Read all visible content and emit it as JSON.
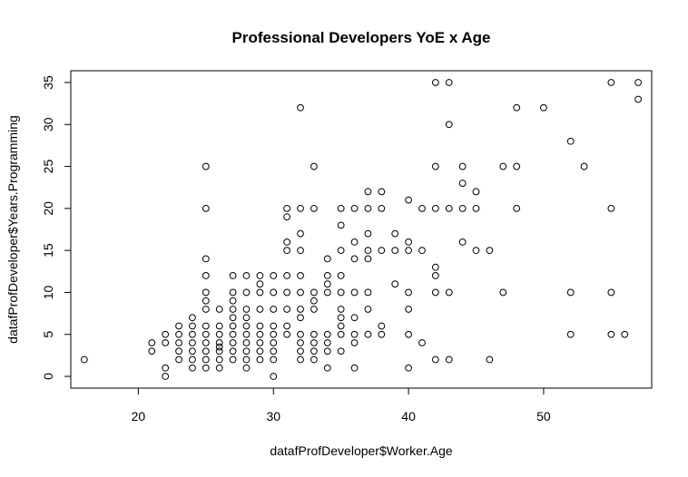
{
  "chart_data": {
    "type": "scatter",
    "title": "Professional Developers YoE x Age",
    "xlabel": "datafProfDeveloper$Worker.Age",
    "ylabel": "datafProfDeveloper$Years.Programming",
    "xlim": [
      15,
      58
    ],
    "ylim": [
      -1.4,
      36.4
    ],
    "xticks": [
      20,
      30,
      40,
      50
    ],
    "yticks": [
      0,
      5,
      10,
      15,
      20,
      25,
      30,
      35
    ],
    "grid": false,
    "legend": "none",
    "points": [
      {
        "x": 16,
        "y": 2
      },
      {
        "x": 21,
        "y": 3
      },
      {
        "x": 21,
        "y": 4
      },
      {
        "x": 22,
        "y": 0
      },
      {
        "x": 22,
        "y": 1
      },
      {
        "x": 22,
        "y": 4
      },
      {
        "x": 22,
        "y": 5
      },
      {
        "x": 23,
        "y": 2
      },
      {
        "x": 23,
        "y": 3
      },
      {
        "x": 23,
        "y": 4
      },
      {
        "x": 23,
        "y": 5
      },
      {
        "x": 23,
        "y": 6
      },
      {
        "x": 24,
        "y": 1
      },
      {
        "x": 24,
        "y": 2
      },
      {
        "x": 24,
        "y": 3
      },
      {
        "x": 24,
        "y": 4
      },
      {
        "x": 24,
        "y": 5
      },
      {
        "x": 24,
        "y": 6
      },
      {
        "x": 24,
        "y": 7
      },
      {
        "x": 25,
        "y": 1
      },
      {
        "x": 25,
        "y": 2
      },
      {
        "x": 25,
        "y": 3
      },
      {
        "x": 25,
        "y": 4
      },
      {
        "x": 25,
        "y": 5
      },
      {
        "x": 25,
        "y": 6
      },
      {
        "x": 25,
        "y": 8
      },
      {
        "x": 25,
        "y": 9
      },
      {
        "x": 25,
        "y": 10
      },
      {
        "x": 25,
        "y": 12
      },
      {
        "x": 25,
        "y": 14
      },
      {
        "x": 25,
        "y": 20
      },
      {
        "x": 25,
        "y": 25
      },
      {
        "x": 26,
        "y": 1
      },
      {
        "x": 26,
        "y": 2
      },
      {
        "x": 26,
        "y": 3
      },
      {
        "x": 26,
        "y": 3.5
      },
      {
        "x": 26,
        "y": 4
      },
      {
        "x": 26,
        "y": 5
      },
      {
        "x": 26,
        "y": 6
      },
      {
        "x": 26,
        "y": 8
      },
      {
        "x": 27,
        "y": 2
      },
      {
        "x": 27,
        "y": 3
      },
      {
        "x": 27,
        "y": 4
      },
      {
        "x": 27,
        "y": 5
      },
      {
        "x": 27,
        "y": 6
      },
      {
        "x": 27,
        "y": 7
      },
      {
        "x": 27,
        "y": 8
      },
      {
        "x": 27,
        "y": 9
      },
      {
        "x": 27,
        "y": 10
      },
      {
        "x": 27,
        "y": 12
      },
      {
        "x": 28,
        "y": 1
      },
      {
        "x": 28,
        "y": 2
      },
      {
        "x": 28,
        "y": 3
      },
      {
        "x": 28,
        "y": 4
      },
      {
        "x": 28,
        "y": 5
      },
      {
        "x": 28,
        "y": 6
      },
      {
        "x": 28,
        "y": 7
      },
      {
        "x": 28,
        "y": 8
      },
      {
        "x": 28,
        "y": 10
      },
      {
        "x": 28,
        "y": 12
      },
      {
        "x": 29,
        "y": 2
      },
      {
        "x": 29,
        "y": 3
      },
      {
        "x": 29,
        "y": 4
      },
      {
        "x": 29,
        "y": 5
      },
      {
        "x": 29,
        "y": 6
      },
      {
        "x": 29,
        "y": 8
      },
      {
        "x": 29,
        "y": 10
      },
      {
        "x": 29,
        "y": 11
      },
      {
        "x": 29,
        "y": 12
      },
      {
        "x": 30,
        "y": 0
      },
      {
        "x": 30,
        "y": 2
      },
      {
        "x": 30,
        "y": 3
      },
      {
        "x": 30,
        "y": 4
      },
      {
        "x": 30,
        "y": 5
      },
      {
        "x": 30,
        "y": 6
      },
      {
        "x": 30,
        "y": 8
      },
      {
        "x": 30,
        "y": 10
      },
      {
        "x": 30,
        "y": 12
      },
      {
        "x": 31,
        "y": 5
      },
      {
        "x": 31,
        "y": 6
      },
      {
        "x": 31,
        "y": 8
      },
      {
        "x": 31,
        "y": 10
      },
      {
        "x": 31,
        "y": 12
      },
      {
        "x": 31,
        "y": 15
      },
      {
        "x": 31,
        "y": 16
      },
      {
        "x": 31,
        "y": 19
      },
      {
        "x": 31,
        "y": 20
      },
      {
        "x": 32,
        "y": 2
      },
      {
        "x": 32,
        "y": 3
      },
      {
        "x": 32,
        "y": 4
      },
      {
        "x": 32,
        "y": 5
      },
      {
        "x": 32,
        "y": 7
      },
      {
        "x": 32,
        "y": 8
      },
      {
        "x": 32,
        "y": 10
      },
      {
        "x": 32,
        "y": 12
      },
      {
        "x": 32,
        "y": 15
      },
      {
        "x": 32,
        "y": 17
      },
      {
        "x": 32,
        "y": 20
      },
      {
        "x": 32,
        "y": 32
      },
      {
        "x": 33,
        "y": 2
      },
      {
        "x": 33,
        "y": 3
      },
      {
        "x": 33,
        "y": 4
      },
      {
        "x": 33,
        "y": 5
      },
      {
        "x": 33,
        "y": 8
      },
      {
        "x": 33,
        "y": 9
      },
      {
        "x": 33,
        "y": 10
      },
      {
        "x": 33,
        "y": 20
      },
      {
        "x": 33,
        "y": 25
      },
      {
        "x": 34,
        "y": 1
      },
      {
        "x": 34,
        "y": 3
      },
      {
        "x": 34,
        "y": 4
      },
      {
        "x": 34,
        "y": 5
      },
      {
        "x": 34,
        "y": 10
      },
      {
        "x": 34,
        "y": 11
      },
      {
        "x": 34,
        "y": 12
      },
      {
        "x": 34,
        "y": 14
      },
      {
        "x": 35,
        "y": 3
      },
      {
        "x": 35,
        "y": 5
      },
      {
        "x": 35,
        "y": 6
      },
      {
        "x": 35,
        "y": 7
      },
      {
        "x": 35,
        "y": 8
      },
      {
        "x": 35,
        "y": 10
      },
      {
        "x": 35,
        "y": 12
      },
      {
        "x": 35,
        "y": 15
      },
      {
        "x": 35,
        "y": 18
      },
      {
        "x": 35,
        "y": 20
      },
      {
        "x": 36,
        "y": 1
      },
      {
        "x": 36,
        "y": 4
      },
      {
        "x": 36,
        "y": 5
      },
      {
        "x": 36,
        "y": 7
      },
      {
        "x": 36,
        "y": 10
      },
      {
        "x": 36,
        "y": 14
      },
      {
        "x": 36,
        "y": 16
      },
      {
        "x": 36,
        "y": 20
      },
      {
        "x": 37,
        "y": 5
      },
      {
        "x": 37,
        "y": 8
      },
      {
        "x": 37,
        "y": 10
      },
      {
        "x": 37,
        "y": 14
      },
      {
        "x": 37,
        "y": 15
      },
      {
        "x": 37,
        "y": 17
      },
      {
        "x": 37,
        "y": 20
      },
      {
        "x": 37,
        "y": 22
      },
      {
        "x": 38,
        "y": 5
      },
      {
        "x": 38,
        "y": 6
      },
      {
        "x": 38,
        "y": 15
      },
      {
        "x": 38,
        "y": 20
      },
      {
        "x": 38,
        "y": 22
      },
      {
        "x": 39,
        "y": 11
      },
      {
        "x": 39,
        "y": 15
      },
      {
        "x": 39,
        "y": 17
      },
      {
        "x": 40,
        "y": 1
      },
      {
        "x": 40,
        "y": 5
      },
      {
        "x": 40,
        "y": 8
      },
      {
        "x": 40,
        "y": 10
      },
      {
        "x": 40,
        "y": 15
      },
      {
        "x": 40,
        "y": 16
      },
      {
        "x": 40,
        "y": 21
      },
      {
        "x": 41,
        "y": 4
      },
      {
        "x": 41,
        "y": 15
      },
      {
        "x": 41,
        "y": 20
      },
      {
        "x": 42,
        "y": 2
      },
      {
        "x": 42,
        "y": 10
      },
      {
        "x": 42,
        "y": 12
      },
      {
        "x": 42,
        "y": 13
      },
      {
        "x": 42,
        "y": 20
      },
      {
        "x": 42,
        "y": 25
      },
      {
        "x": 42,
        "y": 35
      },
      {
        "x": 43,
        "y": 2
      },
      {
        "x": 43,
        "y": 10
      },
      {
        "x": 43,
        "y": 20
      },
      {
        "x": 43,
        "y": 30
      },
      {
        "x": 43,
        "y": 35
      },
      {
        "x": 44,
        "y": 16
      },
      {
        "x": 44,
        "y": 20
      },
      {
        "x": 44,
        "y": 23
      },
      {
        "x": 44,
        "y": 25
      },
      {
        "x": 45,
        "y": 15
      },
      {
        "x": 45,
        "y": 20
      },
      {
        "x": 45,
        "y": 22
      },
      {
        "x": 46,
        "y": 2
      },
      {
        "x": 46,
        "y": 15
      },
      {
        "x": 47,
        "y": 10
      },
      {
        "x": 47,
        "y": 25
      },
      {
        "x": 48,
        "y": 20
      },
      {
        "x": 48,
        "y": 25
      },
      {
        "x": 48,
        "y": 32
      },
      {
        "x": 50,
        "y": 32
      },
      {
        "x": 52,
        "y": 5
      },
      {
        "x": 52,
        "y": 10
      },
      {
        "x": 52,
        "y": 28
      },
      {
        "x": 53,
        "y": 25
      },
      {
        "x": 55,
        "y": 5
      },
      {
        "x": 55,
        "y": 10
      },
      {
        "x": 55,
        "y": 20
      },
      {
        "x": 55,
        "y": 35
      },
      {
        "x": 56,
        "y": 5
      },
      {
        "x": 57,
        "y": 33
      },
      {
        "x": 57,
        "y": 35
      }
    ]
  }
}
